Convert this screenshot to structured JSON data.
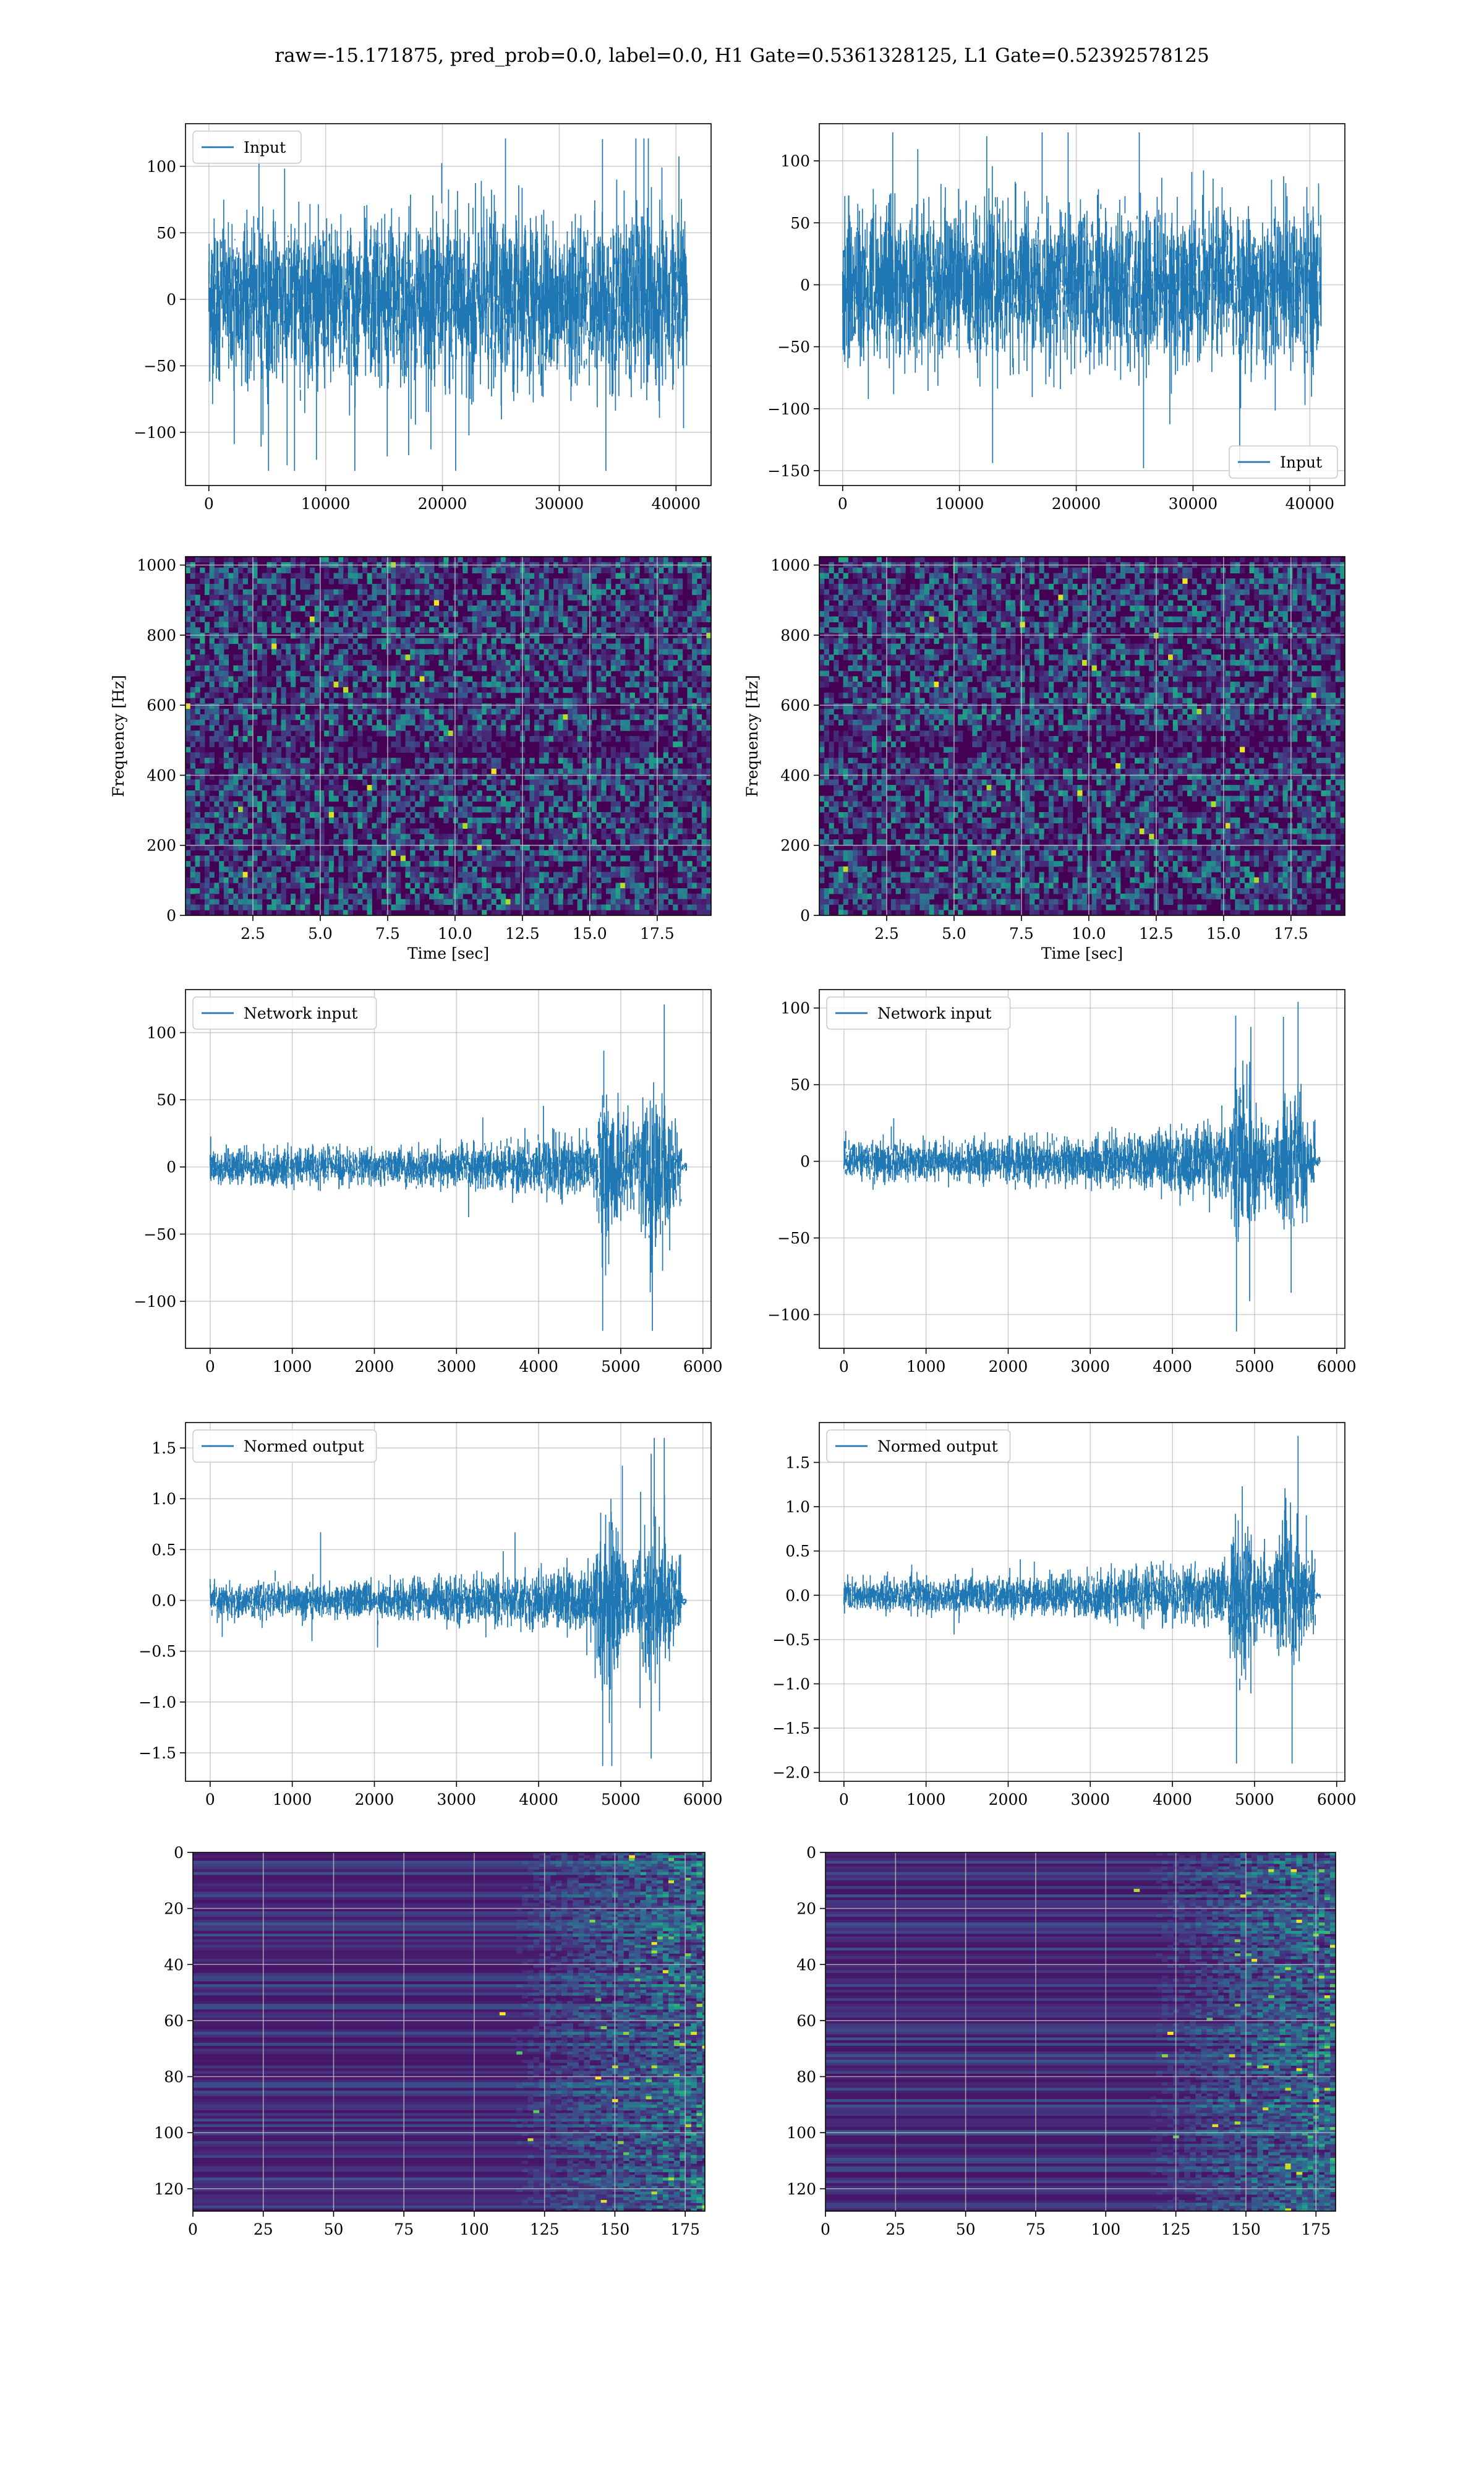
{
  "figure": {
    "suptitle": "raw=-15.171875, pred_prob=0.0, label=0.0, H1 Gate=0.5361328125, L1 Gate=0.52392578125"
  },
  "colors": {
    "line": "#1f77b4",
    "grid": "#b0b0b0",
    "viridis_dark": "#440154",
    "viridis_mid": "#3b528b",
    "viridis_teal": "#21918c",
    "viridis_green": "#5ec962",
    "viridis_yellow": "#fde725"
  },
  "chart_data": [
    {
      "id": "input-h1",
      "type": "line",
      "legend": {
        "label": "Input",
        "loc": "upper-left"
      },
      "xlim": [
        -2000,
        43000
      ],
      "ylim": [
        -140,
        132
      ],
      "xticks": [
        0,
        10000,
        20000,
        30000,
        40000
      ],
      "yticks": [
        -100,
        -50,
        0,
        50,
        100
      ],
      "xticklabels": [
        "0",
        "10000",
        "20000",
        "30000",
        "40000"
      ],
      "yticklabels": [
        "−100",
        "−50",
        "0",
        "50",
        "100"
      ],
      "xlabel": "",
      "ylabel": "",
      "signal": {
        "x_start": 0,
        "x_end": 40960,
        "kind": "noise",
        "base_sd": 30,
        "spike_max": 121,
        "spike_min": -129
      }
    },
    {
      "id": "input-l1",
      "type": "line",
      "legend": {
        "label": "Input",
        "loc": "lower-right"
      },
      "xlim": [
        -2000,
        43000
      ],
      "ylim": [
        -162,
        130
      ],
      "xticks": [
        0,
        10000,
        20000,
        30000,
        40000
      ],
      "yticks": [
        -150,
        -100,
        -50,
        0,
        50,
        100
      ],
      "xticklabels": [
        "0",
        "10000",
        "20000",
        "30000",
        "40000"
      ],
      "yticklabels": [
        "−150",
        "−100",
        "−50",
        "0",
        "50",
        "100"
      ],
      "xlabel": "",
      "ylabel": "",
      "signal": {
        "x_start": 0,
        "x_end": 40960,
        "kind": "noise",
        "base_sd": 30,
        "spike_max": 123,
        "spike_min": -148
      }
    },
    {
      "id": "spectrogram-h1",
      "type": "heatmap",
      "xlim": [
        0,
        19.5
      ],
      "ylim": [
        0,
        1024
      ],
      "xticks": [
        2.5,
        5.0,
        7.5,
        10.0,
        12.5,
        15.0,
        17.5
      ],
      "yticks": [
        0,
        200,
        400,
        600,
        800,
        1000
      ],
      "xticklabels": [
        "2.5",
        "5.0",
        "7.5",
        "10.0",
        "12.5",
        "15.0",
        "17.5"
      ],
      "yticklabels": [
        "0",
        "200",
        "400",
        "600",
        "800",
        "1000"
      ],
      "xlabel": "Time [sec]",
      "ylabel": "Frequency [Hz]",
      "colormap": "viridis",
      "pattern": "random-speckle"
    },
    {
      "id": "spectrogram-l1",
      "type": "heatmap",
      "xlim": [
        0,
        19.5
      ],
      "ylim": [
        0,
        1024
      ],
      "xticks": [
        2.5,
        5.0,
        7.5,
        10.0,
        12.5,
        15.0,
        17.5
      ],
      "yticks": [
        0,
        200,
        400,
        600,
        800,
        1000
      ],
      "xticklabels": [
        "2.5",
        "5.0",
        "7.5",
        "10.0",
        "12.5",
        "15.0",
        "17.5"
      ],
      "yticklabels": [
        "0",
        "200",
        "400",
        "600",
        "800",
        "1000"
      ],
      "xlabel": "Time [sec]",
      "ylabel": "Frequency [Hz]",
      "colormap": "viridis",
      "pattern": "random-speckle"
    },
    {
      "id": "network-input-h1",
      "type": "line",
      "legend": {
        "label": "Network input",
        "loc": "upper-left"
      },
      "xlim": [
        -300,
        6100
      ],
      "ylim": [
        -135,
        132
      ],
      "xticks": [
        0,
        1000,
        2000,
        3000,
        4000,
        5000,
        6000
      ],
      "yticks": [
        -100,
        -50,
        0,
        50,
        100
      ],
      "xticklabels": [
        "0",
        "1000",
        "2000",
        "3000",
        "4000",
        "5000",
        "6000"
      ],
      "yticklabels": [
        "−100",
        "−50",
        "0",
        "50",
        "100"
      ],
      "xlabel": "",
      "ylabel": "",
      "signal": {
        "x_start": 0,
        "x_end": 5800,
        "kind": "chirp",
        "base_sd": 6,
        "burst_start": 4700,
        "burst_end": 5740,
        "burst_sd": 28,
        "spike_max": 121,
        "spike_min": -122
      }
    },
    {
      "id": "network-input-l1",
      "type": "line",
      "legend": {
        "label": "Network input",
        "loc": "upper-left"
      },
      "xlim": [
        -300,
        6100
      ],
      "ylim": [
        -122,
        112
      ],
      "xticks": [
        0,
        1000,
        2000,
        3000,
        4000,
        5000,
        6000
      ],
      "yticks": [
        -100,
        -50,
        0,
        50,
        100
      ],
      "xticklabels": [
        "0",
        "1000",
        "2000",
        "3000",
        "4000",
        "5000",
        "6000"
      ],
      "yticklabels": [
        "−100",
        "−50",
        "0",
        "50",
        "100"
      ],
      "xlabel": "",
      "ylabel": "",
      "signal": {
        "x_start": 0,
        "x_end": 5800,
        "kind": "chirp",
        "base_sd": 6,
        "burst_start": 4700,
        "burst_end": 5740,
        "burst_sd": 25,
        "spike_max": 104,
        "spike_min": -111
      }
    },
    {
      "id": "normed-output-h1",
      "type": "line",
      "legend": {
        "label": "Normed output",
        "loc": "upper-left"
      },
      "xlim": [
        -300,
        6100
      ],
      "ylim": [
        -1.78,
        1.75
      ],
      "xticks": [
        0,
        1000,
        2000,
        3000,
        4000,
        5000,
        6000
      ],
      "yticks": [
        -1.5,
        -1.0,
        -0.5,
        0.0,
        0.5,
        1.0,
        1.5
      ],
      "xticklabels": [
        "0",
        "1000",
        "2000",
        "3000",
        "4000",
        "5000",
        "6000"
      ],
      "yticklabels": [
        "−1.5",
        "−1.0",
        "−0.5",
        "0.0",
        "0.5",
        "1.0",
        "1.5"
      ],
      "xlabel": "",
      "ylabel": "",
      "signal": {
        "x_start": 0,
        "x_end": 5800,
        "kind": "chirp",
        "base_sd": 0.08,
        "burst_start": 4700,
        "burst_end": 5740,
        "burst_sd": 0.38,
        "spike_max": 1.6,
        "spike_min": -1.63
      }
    },
    {
      "id": "normed-output-l1",
      "type": "line",
      "legend": {
        "label": "Normed output",
        "loc": "upper-left"
      },
      "xlim": [
        -300,
        6100
      ],
      "ylim": [
        -2.1,
        1.95
      ],
      "xticks": [
        0,
        1000,
        2000,
        3000,
        4000,
        5000,
        6000
      ],
      "yticks": [
        -2.0,
        -1.5,
        -1.0,
        -0.5,
        0.0,
        0.5,
        1.0,
        1.5
      ],
      "xticklabels": [
        "0",
        "1000",
        "2000",
        "3000",
        "4000",
        "5000",
        "6000"
      ],
      "yticklabels": [
        "−2.0",
        "−1.5",
        "−1.0",
        "−0.5",
        "0.0",
        "0.5",
        "1.0",
        "1.5"
      ],
      "xlabel": "",
      "ylabel": "",
      "signal": {
        "x_start": 0,
        "x_end": 5800,
        "kind": "chirp",
        "base_sd": 0.09,
        "burst_start": 4700,
        "burst_end": 5740,
        "burst_sd": 0.42,
        "spike_max": 1.8,
        "spike_min": -1.9
      }
    },
    {
      "id": "feature-map-h1",
      "type": "heatmap",
      "xlim": [
        0,
        182
      ],
      "ylim": [
        128,
        0
      ],
      "xticks": [
        0,
        25,
        50,
        75,
        100,
        125,
        150,
        175
      ],
      "yticks": [
        0,
        20,
        40,
        60,
        80,
        100,
        120
      ],
      "xticklabels": [
        "0",
        "25",
        "50",
        "75",
        "100",
        "125",
        "150",
        "175"
      ],
      "yticklabels": [
        "0",
        "20",
        "40",
        "60",
        "80",
        "100",
        "120"
      ],
      "xlabel": "",
      "ylabel": "",
      "colormap": "viridis",
      "pattern": "horizontal-bands-with-active-region",
      "active_from": 125
    },
    {
      "id": "feature-map-l1",
      "type": "heatmap",
      "xlim": [
        0,
        182
      ],
      "ylim": [
        128,
        0
      ],
      "xticks": [
        0,
        25,
        50,
        75,
        100,
        125,
        150,
        175
      ],
      "yticks": [
        0,
        20,
        40,
        60,
        80,
        100,
        120
      ],
      "xticklabels": [
        "0",
        "25",
        "50",
        "75",
        "100",
        "125",
        "150",
        "175"
      ],
      "yticklabels": [
        "0",
        "20",
        "40",
        "60",
        "80",
        "100",
        "120"
      ],
      "xlabel": "",
      "ylabel": "",
      "colormap": "viridis",
      "pattern": "horizontal-bands-with-active-region",
      "active_from": 128
    }
  ]
}
